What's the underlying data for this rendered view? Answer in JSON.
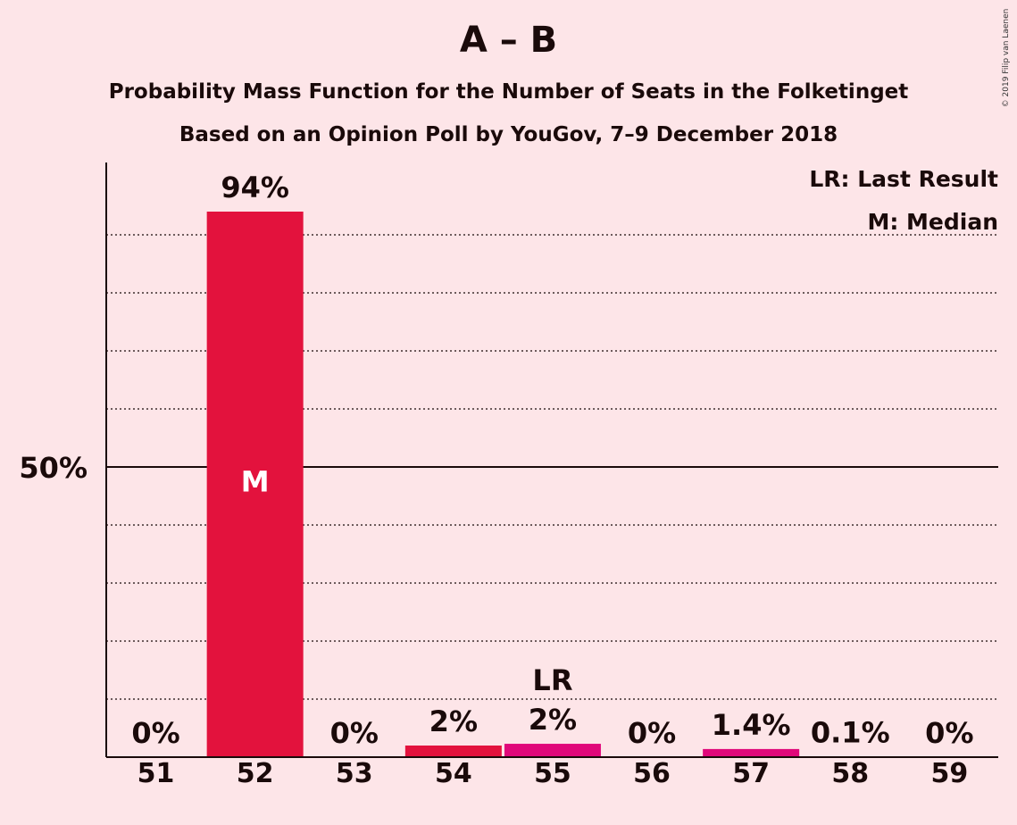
{
  "title": "A – B",
  "subtitle1": "Probability Mass Function for the Number of Seats in the Folketinget",
  "subtitle2": "Based on an Opinion Poll by YouGov, 7–9 December 2018",
  "copyright": "© 2019 Filip van Laenen",
  "legend": {
    "lr": "LR: Last Result",
    "median": "M: Median"
  },
  "colors": {
    "background": "#fde5e8",
    "bar_main": "#e3123d",
    "bar_last_result": "#e0087a",
    "text": "#1a0a0a"
  },
  "chart_data": {
    "type": "bar",
    "categories": [
      "51",
      "52",
      "53",
      "54",
      "55",
      "56",
      "57",
      "58",
      "59"
    ],
    "values": [
      0,
      94,
      0,
      2,
      2.3,
      0,
      1.4,
      0.1,
      0
    ],
    "value_labels": [
      "0%",
      "94%",
      "0%",
      "2%",
      "2%",
      "0%",
      "1.4%",
      "0.1%",
      "0%"
    ],
    "bar_colors": [
      "#e3123d",
      "#e3123d",
      "#e3123d",
      "#e3123d",
      "#e0087a",
      "#e3123d",
      "#e0087a",
      "#e3123d",
      "#e3123d"
    ],
    "median_category": "52",
    "median_marker": "M",
    "last_result_category": "55",
    "last_result_marker": "LR",
    "ylim": [
      0,
      102
    ],
    "y_tick_label": "50%",
    "y_tick_value": 50,
    "gridlines": [
      10,
      20,
      30,
      40,
      60,
      70,
      80,
      90
    ],
    "legend_position": "top-right"
  }
}
